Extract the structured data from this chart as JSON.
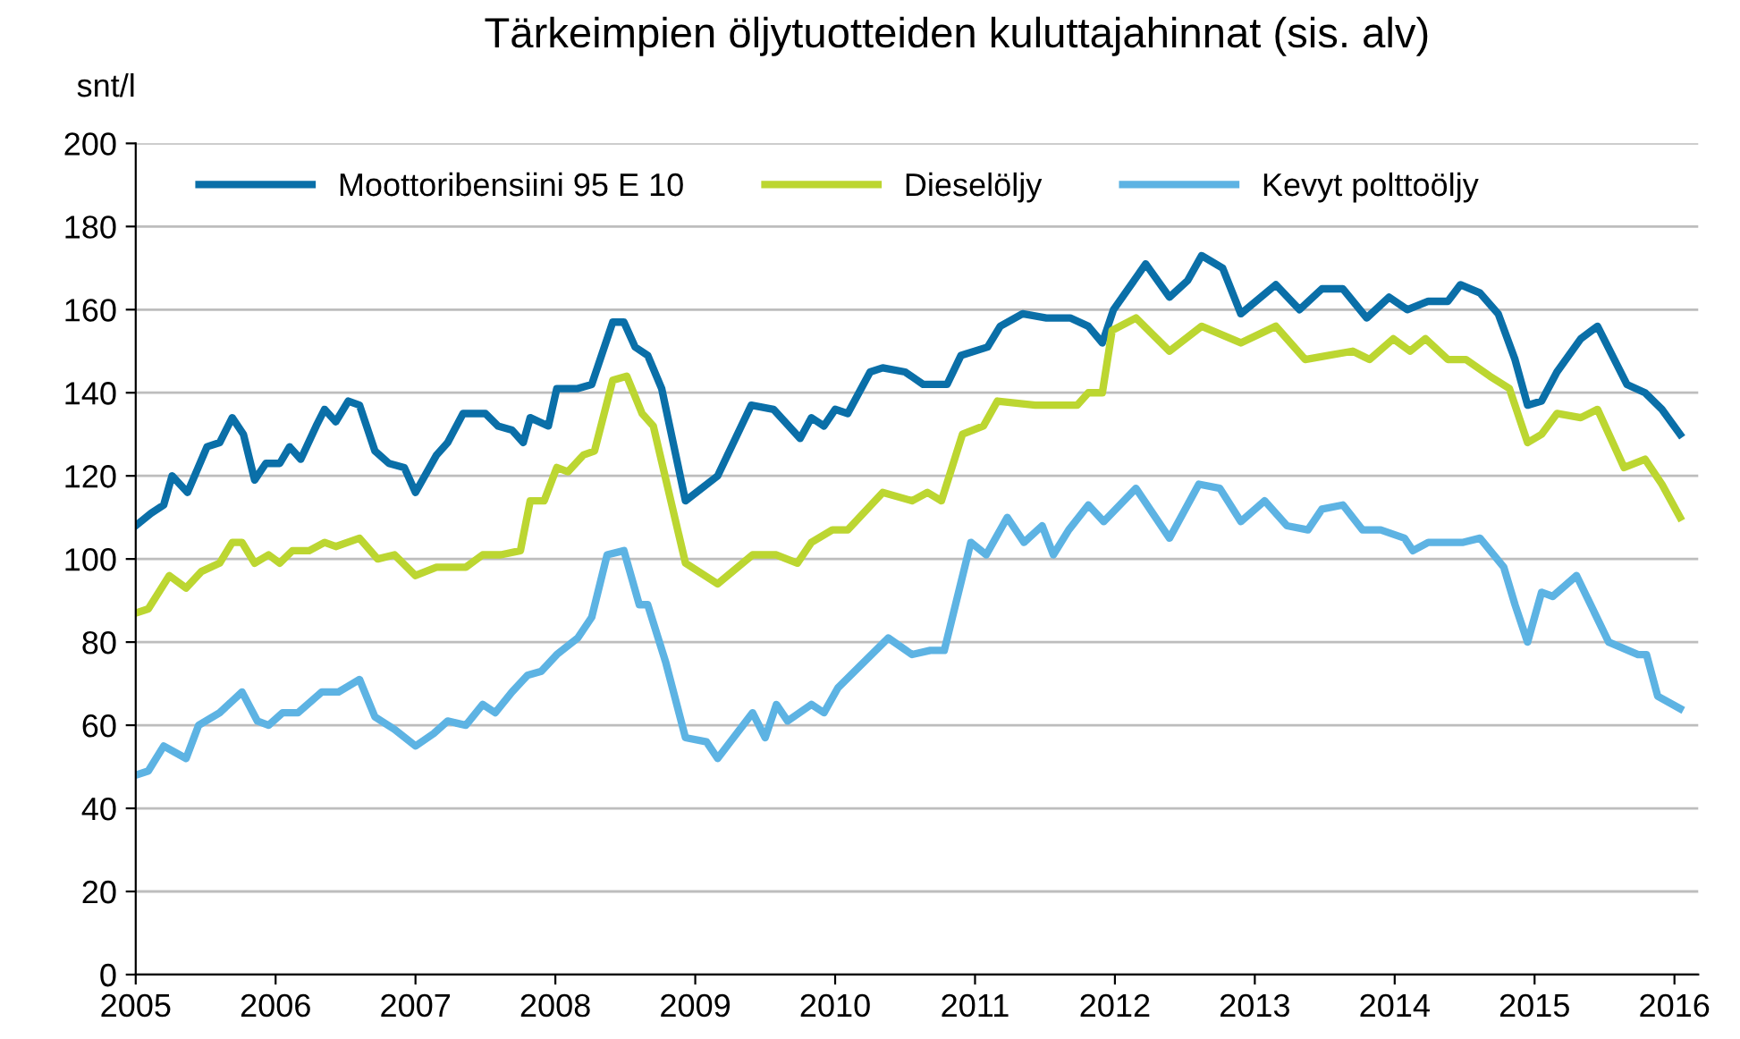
{
  "chart_data": {
    "type": "line",
    "title": "Tärkeimpien öljytuotteiden kuluttajahinnat (sis. alv)",
    "ylabel": "snt/l",
    "xlim": [
      2005,
      2016.17
    ],
    "xticks": [
      2005,
      2006,
      2007,
      2008,
      2009,
      2010,
      2011,
      2012,
      2013,
      2014,
      2015,
      2016
    ],
    "ylim": [
      0,
      200
    ],
    "yticks": [
      0,
      20,
      40,
      60,
      80,
      100,
      120,
      140,
      160,
      180,
      200
    ],
    "grid": "y",
    "legend": "top",
    "marker": "none",
    "line_style": "solid",
    "series": [
      {
        "name": "Moottoribensiini 95 E 10",
        "color": "#0a6fa8",
        "x": [
          2005.0,
          2005.11,
          2005.2,
          2005.26,
          2005.37,
          2005.51,
          2005.6,
          2005.69,
          2005.77,
          2005.85,
          2005.93,
          2006.03,
          2006.1,
          2006.18,
          2006.29,
          2006.35,
          2006.43,
          2006.52,
          2006.6,
          2006.71,
          2006.81,
          2006.92,
          2007.0,
          2007.15,
          2007.23,
          2007.34,
          2007.5,
          2007.59,
          2007.69,
          2007.77,
          2007.82,
          2007.95,
          2008.01,
          2008.16,
          2008.26,
          2008.41,
          2008.49,
          2008.57,
          2008.66,
          2008.76,
          2008.93,
          2009.16,
          2009.4,
          2009.56,
          2009.75,
          2009.83,
          2009.92,
          2010.0,
          2010.09,
          2010.25,
          2010.34,
          2010.5,
          2010.63,
          2010.8,
          2010.9,
          2011.09,
          2011.18,
          2011.34,
          2011.51,
          2011.68,
          2011.81,
          2011.91,
          2011.99,
          2012.22,
          2012.39,
          2012.52,
          2012.62,
          2012.77,
          2012.9,
          2013.15,
          2013.32,
          2013.48,
          2013.63,
          2013.8,
          2013.96,
          2014.09,
          2014.24,
          2014.38,
          2014.47,
          2014.61,
          2014.74,
          2014.86,
          2014.95,
          2015.05,
          2015.16,
          2015.33,
          2015.45,
          2015.66,
          2015.79,
          2015.91,
          2016.04
        ],
        "values": [
          108,
          111,
          113,
          120,
          116,
          127,
          128,
          134,
          130,
          119,
          123,
          123,
          127,
          124,
          132,
          136,
          133,
          138,
          137,
          126,
          123,
          122,
          116,
          125,
          128,
          135,
          135,
          132,
          131,
          128,
          134,
          132,
          141,
          141,
          142,
          157,
          157,
          151,
          149,
          141,
          114,
          120,
          137,
          136,
          129,
          134,
          132,
          136,
          135,
          145,
          146,
          145,
          142,
          142,
          149,
          151,
          156,
          159,
          158,
          158,
          156,
          152,
          160,
          171,
          163,
          167,
          173,
          170,
          159,
          166,
          160,
          165,
          165,
          158,
          163,
          160,
          162,
          162,
          166,
          164,
          159,
          148,
          137,
          138,
          145,
          153,
          156,
          142,
          140,
          136,
          130
        ]
      },
      {
        "name": "Dieselöljy",
        "color": "#bcd631",
        "x": [
          2005.0,
          2005.09,
          2005.24,
          2005.36,
          2005.47,
          2005.6,
          2005.69,
          2005.76,
          2005.85,
          2005.95,
          2006.03,
          2006.12,
          2006.24,
          2006.35,
          2006.43,
          2006.6,
          2006.73,
          2006.85,
          2007.0,
          2007.15,
          2007.36,
          2007.48,
          2007.61,
          2007.75,
          2007.82,
          2007.92,
          2008.01,
          2008.09,
          2008.2,
          2008.28,
          2008.41,
          2008.51,
          2008.62,
          2008.7,
          2008.93,
          2009.16,
          2009.41,
          2009.58,
          2009.73,
          2009.83,
          2009.98,
          2010.09,
          2010.34,
          2010.55,
          2010.66,
          2010.76,
          2010.91,
          2011.06,
          2011.16,
          2011.43,
          2011.6,
          2011.73,
          2011.81,
          2011.91,
          2011.98,
          2012.15,
          2012.39,
          2012.62,
          2012.9,
          2013.15,
          2013.36,
          2013.53,
          2013.7,
          2013.82,
          2013.99,
          2014.11,
          2014.22,
          2014.38,
          2014.51,
          2014.68,
          2014.82,
          2014.95,
          2015.05,
          2015.16,
          2015.33,
          2015.45,
          2015.64,
          2015.79,
          2015.91,
          2016.04
        ],
        "values": [
          87,
          88,
          96,
          93,
          97,
          99,
          104,
          104,
          99,
          101,
          99,
          102,
          102,
          104,
          103,
          105,
          100,
          101,
          96,
          98,
          98,
          101,
          101,
          102,
          114,
          114,
          122,
          121,
          125,
          126,
          143,
          144,
          135,
          132,
          99,
          94,
          101,
          101,
          99,
          104,
          107,
          107,
          116,
          114,
          116,
          114,
          130,
          132,
          138,
          137,
          137,
          137,
          140,
          140,
          155,
          158,
          150,
          156,
          152,
          156,
          148,
          149,
          150,
          148,
          153,
          150,
          153,
          148,
          148,
          144,
          141,
          128,
          130,
          135,
          134,
          136,
          122,
          124,
          118,
          110
        ]
      },
      {
        "name": "Kevyt polttoöljy",
        "color": "#5db3e3",
        "x": [
          2005.0,
          2005.09,
          2005.2,
          2005.36,
          2005.45,
          2005.6,
          2005.76,
          2005.87,
          2005.95,
          2006.05,
          2006.16,
          2006.33,
          2006.45,
          2006.6,
          2006.71,
          2006.85,
          2007.0,
          2007.13,
          2007.23,
          2007.36,
          2007.48,
          2007.57,
          2007.69,
          2007.8,
          2007.9,
          2008.01,
          2008.16,
          2008.26,
          2008.37,
          2008.49,
          2008.6,
          2008.66,
          2008.79,
          2008.93,
          2009.08,
          2009.16,
          2009.25,
          2009.41,
          2009.5,
          2009.58,
          2009.66,
          2009.83,
          2009.92,
          2010.02,
          2010.17,
          2010.38,
          2010.55,
          2010.68,
          2010.78,
          2010.97,
          2011.08,
          2011.23,
          2011.35,
          2011.48,
          2011.56,
          2011.67,
          2011.81,
          2011.92,
          2012.15,
          2012.39,
          2012.6,
          2012.75,
          2012.9,
          2013.07,
          2013.23,
          2013.38,
          2013.48,
          2013.63,
          2013.77,
          2013.9,
          2014.07,
          2014.13,
          2014.24,
          2014.49,
          2014.61,
          2014.78,
          2014.86,
          2014.95,
          2015.05,
          2015.13,
          2015.3,
          2015.53,
          2015.74,
          2015.8,
          2015.88,
          2016.04
        ],
        "values": [
          48,
          49,
          55,
          52,
          60,
          63,
          68,
          61,
          60,
          63,
          63,
          68,
          68,
          71,
          62,
          59,
          55,
          58,
          61,
          60,
          65,
          63,
          68,
          72,
          73,
          77,
          81,
          86,
          101,
          102,
          89,
          89,
          75,
          57,
          56,
          52,
          56,
          63,
          57,
          65,
          61,
          65,
          63,
          69,
          74,
          81,
          77,
          78,
          78,
          104,
          101,
          110,
          104,
          108,
          101,
          107,
          113,
          109,
          117,
          105,
          118,
          117,
          109,
          114,
          108,
          107,
          112,
          113,
          107,
          107,
          105,
          102,
          104,
          104,
          105,
          98,
          89,
          80,
          92,
          91,
          96,
          80,
          77,
          77,
          67,
          64
        ]
      }
    ]
  }
}
